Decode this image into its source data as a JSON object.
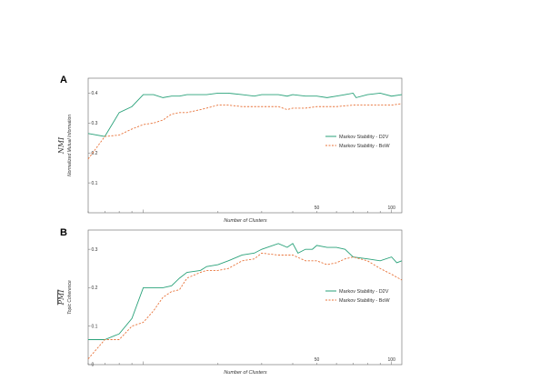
{
  "colors": {
    "d2v": "#2aa27a",
    "bow": "#e8743b",
    "axis": "#555555"
  },
  "chart_data": [
    {
      "panel": "A",
      "type": "line",
      "ylabel_main": "NMI",
      "ylabel_sub": "Normalized Mutual Information",
      "xlabel": "Number of Clusters",
      "xscale": "log",
      "xlim": [
        6,
        110
      ],
      "ylim": [
        0.0,
        0.45
      ],
      "yticks": [
        0.1,
        0.2,
        0.3,
        0.4
      ],
      "ytick_labels": [
        "0.1",
        "0.2",
        "0.3",
        "0.4"
      ],
      "xticks": [
        50,
        100
      ],
      "xtick_labels": [
        "50",
        "100"
      ],
      "legend_position": "right",
      "series": [
        {
          "name": "Markov Stability - D2V",
          "key": "d2v",
          "dash": "solid",
          "points": [
            [
              6,
              0.265
            ],
            [
              7,
              0.255
            ],
            [
              8,
              0.335
            ],
            [
              9,
              0.355
            ],
            [
              10,
              0.395
            ],
            [
              11,
              0.395
            ],
            [
              12,
              0.385
            ],
            [
              13,
              0.39
            ],
            [
              14,
              0.39
            ],
            [
              15,
              0.395
            ],
            [
              17,
              0.395
            ],
            [
              18,
              0.395
            ],
            [
              20,
              0.4
            ],
            [
              22,
              0.4
            ],
            [
              25,
              0.395
            ],
            [
              28,
              0.39
            ],
            [
              30,
              0.395
            ],
            [
              35,
              0.395
            ],
            [
              38,
              0.39
            ],
            [
              40,
              0.395
            ],
            [
              45,
              0.39
            ],
            [
              50,
              0.39
            ],
            [
              55,
              0.385
            ],
            [
              60,
              0.39
            ],
            [
              65,
              0.395
            ],
            [
              70,
              0.4
            ],
            [
              72,
              0.385
            ],
            [
              80,
              0.395
            ],
            [
              90,
              0.4
            ],
            [
              100,
              0.39
            ],
            [
              110,
              0.395
            ]
          ]
        },
        {
          "name": "Markov Stability - BoW",
          "key": "bow",
          "dash": "dashed",
          "points": [
            [
              6,
              0.18
            ],
            [
              7,
              0.255
            ],
            [
              8,
              0.26
            ],
            [
              9,
              0.28
            ],
            [
              10,
              0.295
            ],
            [
              11,
              0.3
            ],
            [
              12,
              0.31
            ],
            [
              13,
              0.33
            ],
            [
              14,
              0.335
            ],
            [
              15,
              0.335
            ],
            [
              17,
              0.345
            ],
            [
              18,
              0.35
            ],
            [
              20,
              0.36
            ],
            [
              22,
              0.36
            ],
            [
              25,
              0.355
            ],
            [
              28,
              0.355
            ],
            [
              30,
              0.355
            ],
            [
              35,
              0.355
            ],
            [
              38,
              0.345
            ],
            [
              40,
              0.35
            ],
            [
              45,
              0.35
            ],
            [
              50,
              0.355
            ],
            [
              55,
              0.355
            ],
            [
              60,
              0.355
            ],
            [
              70,
              0.36
            ],
            [
              80,
              0.36
            ],
            [
              90,
              0.36
            ],
            [
              100,
              0.36
            ],
            [
              110,
              0.365
            ]
          ]
        }
      ]
    },
    {
      "panel": "B",
      "type": "line",
      "ylabel_main": "PMI",
      "ylabel_sub": "Topic Coherence",
      "xlabel": "Number of Clusters",
      "xscale": "log",
      "xlim": [
        6,
        110
      ],
      "ylim": [
        0.0,
        0.35
      ],
      "yticks": [
        0.0,
        0.1,
        0.2,
        0.3
      ],
      "ytick_labels": [
        "0",
        "0.1",
        "0.2",
        "0.3"
      ],
      "xticks": [
        50,
        100
      ],
      "xtick_labels": [
        "50",
        "100"
      ],
      "legend_position": "right",
      "series": [
        {
          "name": "Markov Stability - D2V",
          "key": "d2v",
          "dash": "solid",
          "points": [
            [
              6,
              0.065
            ],
            [
              7,
              0.065
            ],
            [
              8,
              0.08
            ],
            [
              9,
              0.12
            ],
            [
              10,
              0.2
            ],
            [
              11,
              0.2
            ],
            [
              12,
              0.2
            ],
            [
              13,
              0.205
            ],
            [
              14,
              0.225
            ],
            [
              15,
              0.24
            ],
            [
              17,
              0.245
            ],
            [
              18,
              0.255
            ],
            [
              20,
              0.26
            ],
            [
              22,
              0.27
            ],
            [
              25,
              0.285
            ],
            [
              28,
              0.29
            ],
            [
              30,
              0.3
            ],
            [
              35,
              0.315
            ],
            [
              38,
              0.305
            ],
            [
              40,
              0.315
            ],
            [
              42,
              0.29
            ],
            [
              45,
              0.3
            ],
            [
              48,
              0.3
            ],
            [
              50,
              0.31
            ],
            [
              55,
              0.305
            ],
            [
              60,
              0.305
            ],
            [
              65,
              0.3
            ],
            [
              70,
              0.28
            ],
            [
              80,
              0.275
            ],
            [
              90,
              0.27
            ],
            [
              100,
              0.28
            ],
            [
              105,
              0.265
            ],
            [
              110,
              0.27
            ]
          ]
        },
        {
          "name": "Markov Stability - BoW",
          "key": "bow",
          "dash": "dashed",
          "points": [
            [
              6,
              0.015
            ],
            [
              7,
              0.065
            ],
            [
              8,
              0.065
            ],
            [
              9,
              0.1
            ],
            [
              10,
              0.11
            ],
            [
              11,
              0.14
            ],
            [
              12,
              0.175
            ],
            [
              13,
              0.19
            ],
            [
              14,
              0.195
            ],
            [
              15,
              0.225
            ],
            [
              17,
              0.24
            ],
            [
              18,
              0.245
            ],
            [
              20,
              0.245
            ],
            [
              22,
              0.25
            ],
            [
              25,
              0.27
            ],
            [
              28,
              0.275
            ],
            [
              30,
              0.29
            ],
            [
              35,
              0.285
            ],
            [
              40,
              0.285
            ],
            [
              45,
              0.27
            ],
            [
              50,
              0.27
            ],
            [
              55,
              0.26
            ],
            [
              60,
              0.265
            ],
            [
              65,
              0.275
            ],
            [
              70,
              0.28
            ],
            [
              80,
              0.27
            ],
            [
              90,
              0.25
            ],
            [
              100,
              0.235
            ],
            [
              110,
              0.22
            ]
          ]
        }
      ]
    }
  ]
}
